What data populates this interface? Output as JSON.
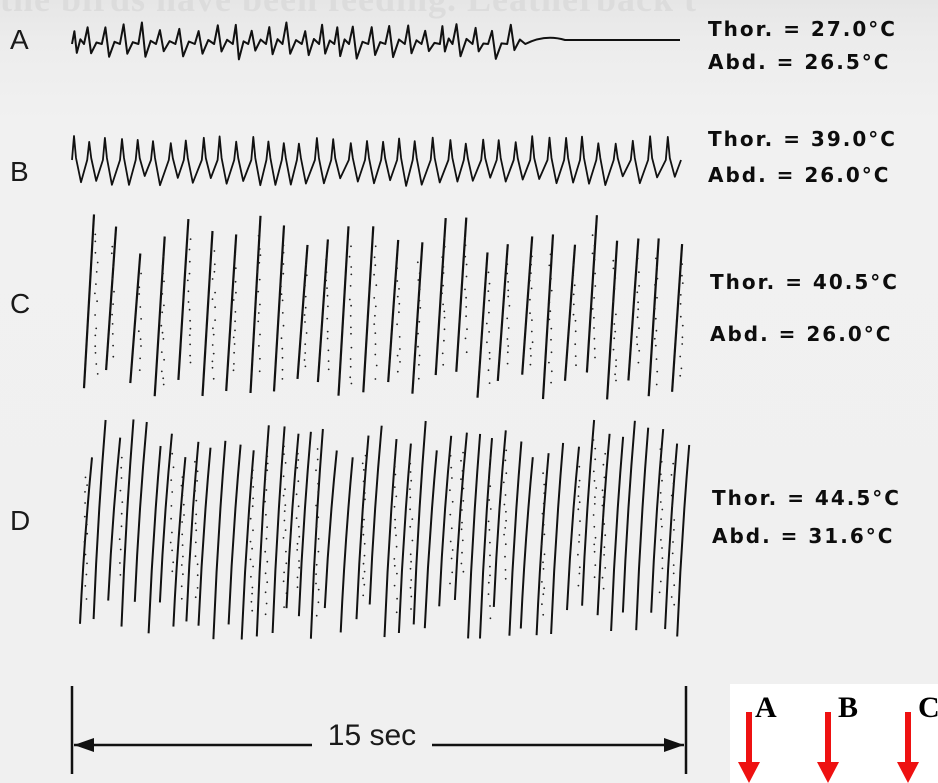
{
  "ghost_text": "the birds have been feeding. Leatherback t",
  "traces": [
    {
      "label": "A",
      "thorax": "Thor. = 27.0°C",
      "abdomen": "Abd.  = 26.5°C"
    },
    {
      "label": "B",
      "thorax": "Thor. = 39.0°C",
      "abdomen": "Abd.  = 26.0°C"
    },
    {
      "label": "C",
      "thorax": "Thor. = 40.5°C",
      "abdomen": "Abd.  = 26.0°C"
    },
    {
      "label": "D",
      "thorax": "Thor. = 44.5°C",
      "abdomen": "Abd.  = 31.6°C"
    }
  ],
  "scale_bar": {
    "label": "15 sec"
  },
  "markers": [
    {
      "label": "A",
      "color": "#ee1111"
    },
    {
      "label": "B",
      "color": "#ee1111"
    },
    {
      "label": "C",
      "color": "#ee1111"
    }
  ]
}
